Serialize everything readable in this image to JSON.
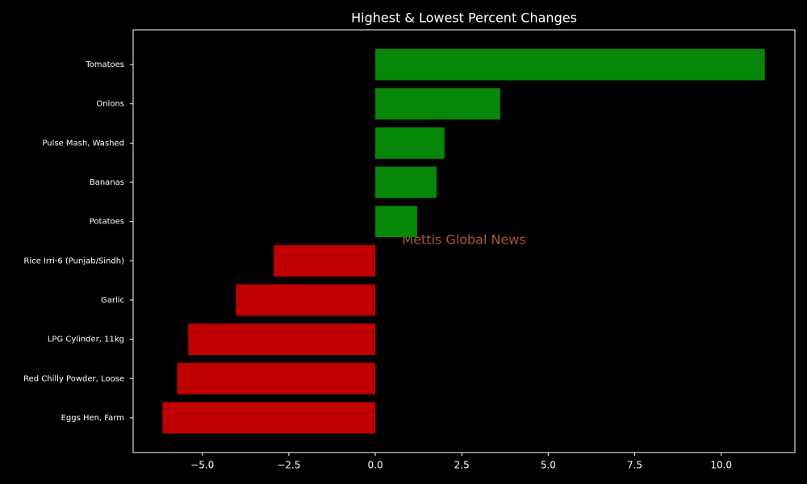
{
  "chart_data": {
    "type": "barh",
    "title": "Highest & Lowest Percent Changes",
    "categories": [
      "Tomatoes",
      "Onions",
      "Pulse Mash, Washed",
      "Bananas",
      "Potatoes",
      "Rice Irri-6 (Punjab/Sindh)",
      "Garlic",
      "LPG Cylinder, 11kg",
      "Red Chilly Powder, Loose",
      "Eggs Hen, Farm"
    ],
    "values": [
      11.26,
      3.61,
      2.0,
      1.77,
      1.21,
      -2.94,
      -4.03,
      -5.41,
      -5.73,
      -6.15
    ],
    "positive_color": "#078707",
    "negative_color": "#c00000",
    "xlim": [
      -7.0,
      12.13
    ],
    "xticks": [
      {
        "value": -5,
        "label": "−5.0"
      },
      {
        "value": -2.5,
        "label": "−2.5"
      },
      {
        "value": 0,
        "label": "0.0"
      },
      {
        "value": 2.5,
        "label": "2.5"
      },
      {
        "value": 5,
        "label": "5.0"
      },
      {
        "value": 7.5,
        "label": "7.5"
      },
      {
        "value": 10,
        "label": "10.0"
      }
    ],
    "annotation": "Mettis Global News"
  }
}
